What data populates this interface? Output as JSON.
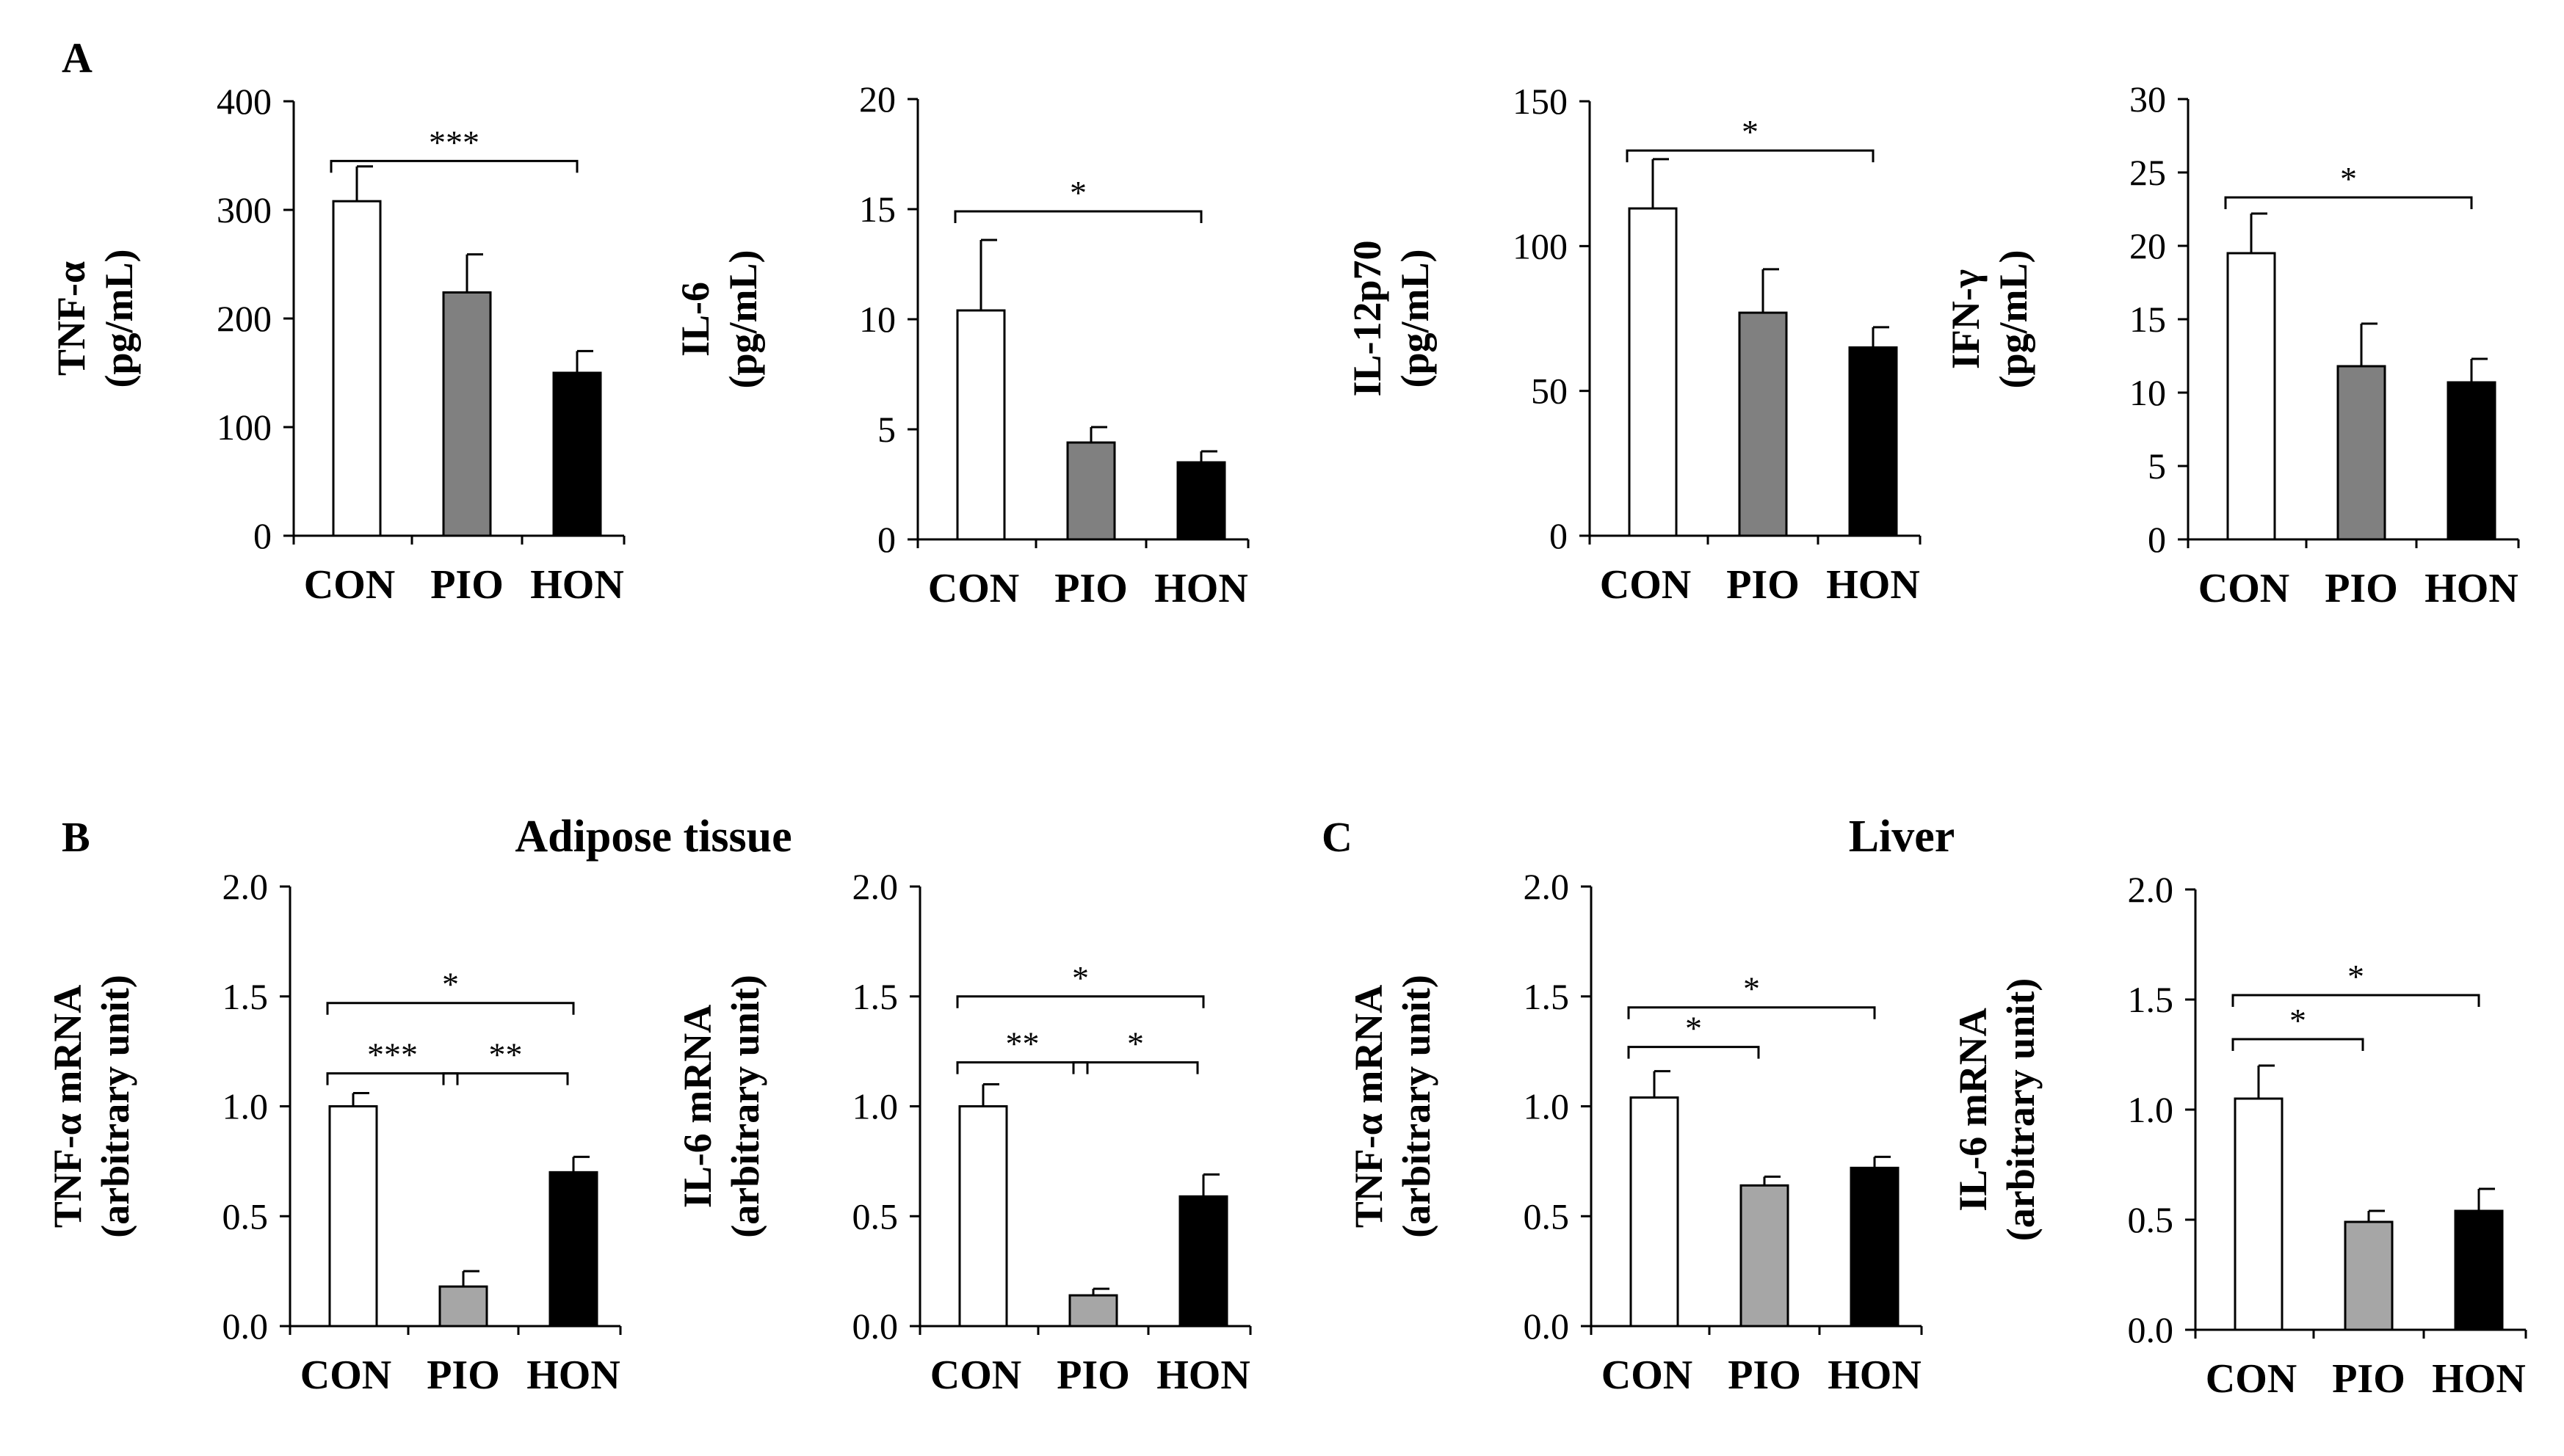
{
  "panel_labels": {
    "A": "A",
    "B": "B",
    "C": "C"
  },
  "section_titles": {
    "B": "Adipose tissue",
    "C": "Liver"
  },
  "colors": {
    "CON": "#ffffff",
    "PIO_dark": "#808080",
    "PIO_light": "#a6a6a6",
    "HON": "#000000",
    "axis": "#000000"
  },
  "chart_data": [
    {
      "id": "tnfa-serum",
      "type": "bar",
      "panel": "A",
      "ylabel_lines": [
        "TNF-α",
        "(pg/mL)"
      ],
      "categories": [
        "CON",
        "PIO",
        "HON"
      ],
      "values": [
        308,
        224,
        150
      ],
      "errors": [
        32,
        35,
        20
      ],
      "ylim": [
        0,
        400
      ],
      "yticks": [
        0,
        100,
        200,
        300,
        400
      ],
      "tick_labels": [
        "0",
        "100",
        "200",
        "300",
        "400"
      ],
      "pio_shade": "dark",
      "significance": [
        {
          "from": 0,
          "to": 2,
          "level": 345,
          "label": "***"
        }
      ]
    },
    {
      "id": "il6-serum",
      "type": "bar",
      "panel": "A",
      "ylabel_lines": [
        "IL-6",
        "(pg/mL)"
      ],
      "categories": [
        "CON",
        "PIO",
        "HON"
      ],
      "values": [
        10.4,
        4.4,
        3.5
      ],
      "errors": [
        3.2,
        0.7,
        0.5
      ],
      "ylim": [
        0,
        20
      ],
      "yticks": [
        0,
        5,
        10,
        15,
        20
      ],
      "tick_labels": [
        "0",
        "5",
        "10",
        "15",
        "20"
      ],
      "pio_shade": "dark",
      "significance": [
        {
          "from": 0,
          "to": 2,
          "level": 14.9,
          "label": "*"
        }
      ]
    },
    {
      "id": "il12-serum",
      "type": "bar",
      "panel": "A",
      "ylabel_lines": [
        "IL-12p70",
        "(pg/mL)"
      ],
      "categories": [
        "CON",
        "PIO",
        "HON"
      ],
      "values": [
        113,
        77,
        65
      ],
      "errors": [
        17,
        15,
        7
      ],
      "ylim": [
        0,
        150
      ],
      "yticks": [
        0,
        50,
        100,
        150
      ],
      "tick_labels": [
        "0",
        "50",
        "100",
        "150"
      ],
      "pio_shade": "dark",
      "significance": [
        {
          "from": 0,
          "to": 2,
          "level": 133,
          "label": "*"
        }
      ]
    },
    {
      "id": "ifng-serum",
      "type": "bar",
      "panel": "A",
      "ylabel_lines": [
        "IFN-γ",
        "(pg/mL)"
      ],
      "categories": [
        "CON",
        "PIO",
        "HON"
      ],
      "values": [
        19.5,
        11.8,
        10.7
      ],
      "errors": [
        2.7,
        2.9,
        1.6
      ],
      "ylim": [
        0,
        30
      ],
      "yticks": [
        0,
        5,
        10,
        15,
        20,
        25,
        30
      ],
      "tick_labels": [
        "0",
        "5",
        "10",
        "15",
        "20",
        "25",
        "30"
      ],
      "pio_shade": "dark",
      "significance": [
        {
          "from": 0,
          "to": 2,
          "level": 23.3,
          "label": "*"
        }
      ]
    },
    {
      "id": "tnfa-adipose",
      "type": "bar",
      "panel": "B",
      "ylabel_lines": [
        "TNF-α mRNA",
        "(arbitrary unit)"
      ],
      "categories": [
        "CON",
        "PIO",
        "HON"
      ],
      "values": [
        1.0,
        0.18,
        0.7
      ],
      "errors": [
        0.06,
        0.07,
        0.07
      ],
      "ylim": [
        0,
        2.0
      ],
      "yticks": [
        0,
        0.5,
        1.0,
        1.5,
        2.0
      ],
      "tick_labels": [
        "0.0",
        "0.5",
        "1.0",
        "1.5",
        "2.0"
      ],
      "pio_shade": "light",
      "significance": [
        {
          "from": 0,
          "to": 2,
          "level": 1.47,
          "label": "*"
        },
        {
          "from": 0,
          "to": 1,
          "level": 1.15,
          "label": "***"
        },
        {
          "from": 1,
          "to": 2,
          "level": 1.15,
          "label": "**"
        }
      ]
    },
    {
      "id": "il6-adipose",
      "type": "bar",
      "panel": "B",
      "ylabel_lines": [
        "IL-6 mRNA",
        "(arbitrary unit)"
      ],
      "categories": [
        "CON",
        "PIO",
        "HON"
      ],
      "values": [
        1.0,
        0.14,
        0.59
      ],
      "errors": [
        0.1,
        0.03,
        0.1
      ],
      "ylim": [
        0,
        2.0
      ],
      "yticks": [
        0,
        0.5,
        1.0,
        1.5,
        2.0
      ],
      "tick_labels": [
        "0.0",
        "0.5",
        "1.0",
        "1.5",
        "2.0"
      ],
      "pio_shade": "light",
      "significance": [
        {
          "from": 0,
          "to": 2,
          "level": 1.5,
          "label": "*"
        },
        {
          "from": 0,
          "to": 1,
          "level": 1.2,
          "label": "**"
        },
        {
          "from": 1,
          "to": 2,
          "level": 1.2,
          "label": "*"
        }
      ]
    },
    {
      "id": "tnfa-liver",
      "type": "bar",
      "panel": "C",
      "ylabel_lines": [
        "TNF-α mRNA",
        "(arbitrary unit)"
      ],
      "categories": [
        "CON",
        "PIO",
        "HON"
      ],
      "values": [
        1.04,
        0.64,
        0.72
      ],
      "errors": [
        0.12,
        0.04,
        0.05
      ],
      "ylim": [
        0,
        2.0
      ],
      "yticks": [
        0,
        0.5,
        1.0,
        1.5,
        2.0
      ],
      "tick_labels": [
        "0.0",
        "0.5",
        "1.0",
        "1.5",
        "2.0"
      ],
      "pio_shade": "light",
      "significance": [
        {
          "from": 0,
          "to": 2,
          "level": 1.45,
          "label": "*"
        },
        {
          "from": 0,
          "to": 1,
          "level": 1.27,
          "label": "*"
        }
      ]
    },
    {
      "id": "il6-liver",
      "type": "bar",
      "panel": "C",
      "ylabel_lines": [
        "IL-6 mRNA",
        "(arbitrary unit)"
      ],
      "categories": [
        "CON",
        "PIO",
        "HON"
      ],
      "values": [
        1.05,
        0.49,
        0.54
      ],
      "errors": [
        0.15,
        0.05,
        0.1
      ],
      "ylim": [
        0,
        2.0
      ],
      "yticks": [
        0,
        0.5,
        1.0,
        1.5,
        2.0
      ],
      "tick_labels": [
        "0.0",
        "0.5",
        "1.0",
        "1.5",
        "2.0"
      ],
      "pio_shade": "light",
      "significance": [
        {
          "from": 0,
          "to": 2,
          "level": 1.52,
          "label": "*"
        },
        {
          "from": 0,
          "to": 1,
          "level": 1.32,
          "label": "*"
        }
      ]
    }
  ]
}
